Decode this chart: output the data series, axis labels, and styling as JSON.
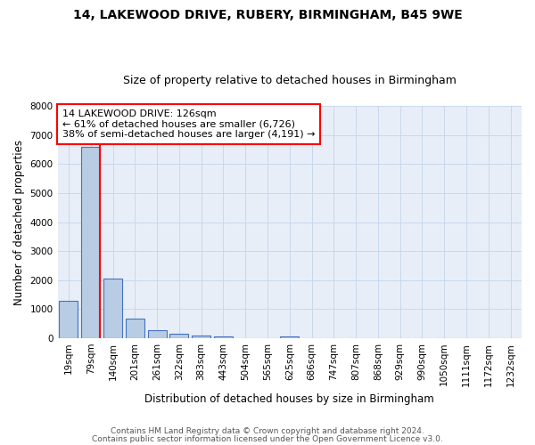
{
  "title": "14, LAKEWOOD DRIVE, RUBERY, BIRMINGHAM, B45 9WE",
  "subtitle": "Size of property relative to detached houses in Birmingham",
  "xlabel": "Distribution of detached houses by size in Birmingham",
  "ylabel": "Number of detached properties",
  "footnote1": "Contains HM Land Registry data © Crown copyright and database right 2024.",
  "footnote2": "Contains public sector information licensed under the Open Government Licence v3.0.",
  "bin_labels": [
    "19sqm",
    "79sqm",
    "140sqm",
    "201sqm",
    "261sqm",
    "322sqm",
    "383sqm",
    "443sqm",
    "504sqm",
    "565sqm",
    "625sqm",
    "686sqm",
    "747sqm",
    "807sqm",
    "868sqm",
    "929sqm",
    "990sqm",
    "1050sqm",
    "1111sqm",
    "1172sqm",
    "1232sqm"
  ],
  "bar_values": [
    1300,
    6600,
    2050,
    680,
    270,
    150,
    105,
    60,
    0,
    0,
    60,
    0,
    0,
    0,
    0,
    0,
    0,
    0,
    0,
    0,
    0
  ],
  "bar_color": "#b8cce4",
  "bar_edge_color": "#4472c4",
  "property_line_label": "14 LAKEWOOD DRIVE: 126sqm",
  "annotation_line1": "← 61% of detached houses are smaller (6,726)",
  "annotation_line2": "38% of semi-detached houses are larger (4,191) →",
  "ylim": [
    0,
    8000
  ],
  "yticks": [
    0,
    1000,
    2000,
    3000,
    4000,
    5000,
    6000,
    7000,
    8000
  ],
  "background_color": "#ffffff",
  "plot_bg_color": "#e8eef7",
  "grid_color": "#c8d8ec",
  "title_fontsize": 10,
  "subtitle_fontsize": 9,
  "axis_label_fontsize": 8.5,
  "tick_fontsize": 7.5,
  "annotation_fontsize": 8
}
